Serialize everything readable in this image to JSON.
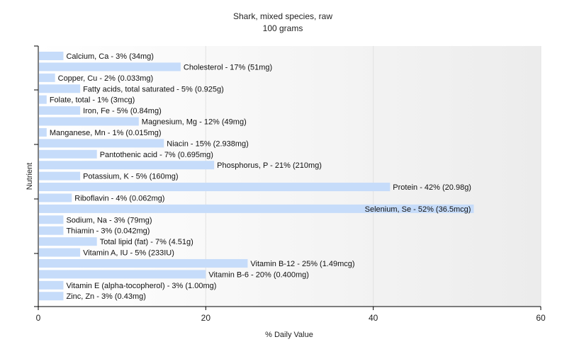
{
  "chart_data": {
    "type": "bar",
    "orientation": "horizontal",
    "title": "Shark, mixed species, raw",
    "subtitle": "100 grams",
    "xlabel": "% Daily Value",
    "ylabel": "Nutrient",
    "xlim": [
      0,
      60
    ],
    "xticks": [
      "0",
      "20",
      "40",
      "60"
    ],
    "grid": true,
    "bar_color": "#c6dcfa",
    "categories": [
      "Calcium, Ca",
      "Cholesterol",
      "Copper, Cu",
      "Fatty acids, total saturated",
      "Folate, total",
      "Iron, Fe",
      "Magnesium, Mg",
      "Manganese, Mn",
      "Niacin",
      "Pantothenic acid",
      "Phosphorus, P",
      "Potassium, K",
      "Protein",
      "Riboflavin",
      "Selenium, Se",
      "Sodium, Na",
      "Thiamin",
      "Total lipid (fat)",
      "Vitamin A, IU",
      "Vitamin B-12",
      "Vitamin B-6",
      "Vitamin E (alpha-tocopherol)",
      "Zinc, Zn"
    ],
    "values": [
      3,
      17,
      2,
      5,
      1,
      5,
      12,
      1,
      15,
      7,
      21,
      5,
      42,
      4,
      52,
      3,
      3,
      7,
      5,
      25,
      20,
      3,
      3
    ],
    "labels": [
      "Calcium, Ca - 3% (34mg)",
      "Cholesterol - 17% (51mg)",
      "Copper, Cu - 2% (0.033mg)",
      "Fatty acids, total saturated - 5% (0.925g)",
      "Folate, total - 1% (3mcg)",
      "Iron, Fe - 5% (0.84mg)",
      "Magnesium, Mg - 12% (49mg)",
      "Manganese, Mn - 1% (0.015mg)",
      "Niacin - 15% (2.938mg)",
      "Pantothenic acid - 7% (0.695mg)",
      "Phosphorus, P - 21% (210mg)",
      "Potassium, K - 5% (160mg)",
      "Protein - 42% (20.98g)",
      "Riboflavin - 4% (0.062mg)",
      "Selenium, Se - 52% (36.5mcg)",
      "Sodium, Na - 3% (79mg)",
      "Thiamin - 3% (0.042mg)",
      "Total lipid (fat) - 7% (4.51g)",
      "Vitamin A, IU - 5% (233IU)",
      "Vitamin B-12 - 25% (1.49mcg)",
      "Vitamin B-6 - 20% (0.400mg)",
      "Vitamin E (alpha-tocopherol) - 3% (1.00mg)",
      "Zinc, Zn - 3% (0.43mg)"
    ]
  }
}
